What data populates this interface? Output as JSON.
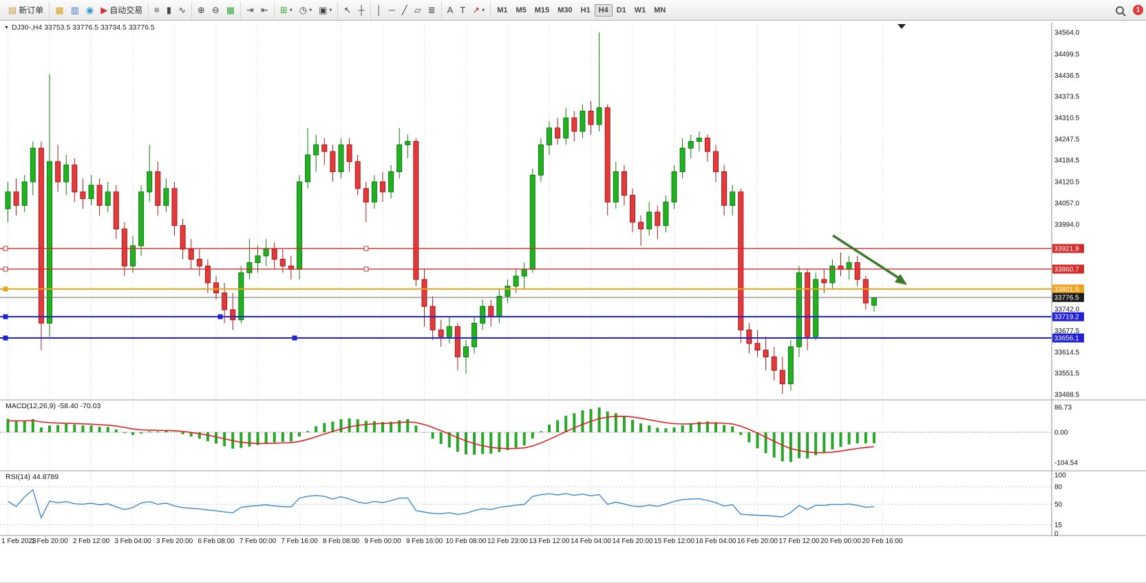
{
  "icons": {
    "chart-menu": {
      "g": "▼",
      "c": "#111"
    },
    "new-order": {
      "g": "▤",
      "c": "#c89b3c"
    },
    "market-watch": {
      "g": "▦",
      "c": "#d4a017"
    },
    "data-window": {
      "g": "▥",
      "c": "#4a77c9"
    },
    "navigator": {
      "g": "◉",
      "c": "#2e9bd6"
    },
    "autotrade": {
      "g": "▶",
      "c": "#cc3333"
    },
    "bars": {
      "g": "≡",
      "c": "#444",
      "rot": 90
    },
    "candles": {
      "g": "▮",
      "c": "#444"
    },
    "line-chart": {
      "g": "∿",
      "c": "#444"
    },
    "zoom-in": {
      "g": "⊕",
      "c": "#444"
    },
    "zoom-out": {
      "g": "⊖",
      "c": "#444"
    },
    "tile-windows": {
      "g": "▦",
      "c": "#3aa83a"
    },
    "auto-scroll": {
      "g": "⇥",
      "c": "#444"
    },
    "chart-shift": {
      "g": "⇤",
      "c": "#444"
    },
    "indicators": {
      "g": "⊞",
      "c": "#3aa83a"
    },
    "periods": {
      "g": "◷",
      "c": "#444"
    },
    "templates": {
      "g": "▣",
      "c": "#444"
    },
    "cursor": {
      "g": "↖",
      "c": "#444"
    },
    "crosshair": {
      "g": "┼",
      "c": "#444"
    },
    "vertical-line": {
      "g": "│",
      "c": "#444"
    },
    "horizontal-line": {
      "g": "─",
      "c": "#444"
    },
    "trendline": {
      "g": "╱",
      "c": "#444"
    },
    "channel": {
      "g": "▱",
      "c": "#444"
    },
    "fibonacci": {
      "g": "≣",
      "c": "#444"
    },
    "text": {
      "g": "A",
      "c": "#444"
    },
    "label": {
      "g": "T",
      "c": "#444"
    },
    "arrows": {
      "g": "↗",
      "c": "#b03030"
    }
  },
  "toolbar": {
    "groups": [
      {
        "items": [
          {
            "name": "new-order-button",
            "icon": "new-order",
            "label": "新订单"
          }
        ]
      },
      {
        "items": [
          {
            "name": "market-watch-button",
            "icon": "market-watch"
          },
          {
            "name": "data-window-button",
            "icon": "data-window"
          },
          {
            "name": "navigator-button",
            "icon": "navigator"
          },
          {
            "name": "autotrade-button",
            "icon": "autotrade",
            "label": "自动交易"
          }
        ]
      },
      {
        "items": [
          {
            "name": "ohlc-bars-button",
            "icon": "bars"
          },
          {
            "name": "candlesticks-button",
            "icon": "candles"
          },
          {
            "name": "line-chart-button",
            "icon": "line-chart"
          }
        ]
      },
      {
        "items": [
          {
            "name": "zoom-in-button",
            "icon": "zoom-in"
          },
          {
            "name": "zoom-out-button",
            "icon": "zoom-out"
          },
          {
            "name": "tile-windows-button",
            "icon": "tile-windows"
          }
        ]
      },
      {
        "items": [
          {
            "name": "auto-scroll-button",
            "icon": "auto-scroll"
          },
          {
            "name": "chart-shift-button",
            "icon": "chart-shift"
          }
        ]
      },
      {
        "items": [
          {
            "name": "indicators-button",
            "icon": "indicators",
            "caret": true
          },
          {
            "name": "periods-button",
            "icon": "periods",
            "caret": true
          },
          {
            "name": "templates-button",
            "icon": "templates",
            "caret": true
          }
        ]
      },
      {
        "items": [
          {
            "name": "cursor-button",
            "icon": "cursor"
          },
          {
            "name": "crosshair-button",
            "icon": "crosshair"
          }
        ]
      },
      {
        "items": [
          {
            "name": "vertical-line-button",
            "icon": "vertical-line"
          },
          {
            "name": "horizontal-line-button",
            "icon": "horizontal-line"
          },
          {
            "name": "trendline-button",
            "icon": "trendline"
          },
          {
            "name": "channel-button",
            "icon": "channel"
          },
          {
            "name": "fibonacci-button",
            "icon": "fibonacci"
          }
        ]
      },
      {
        "items": [
          {
            "name": "text-button",
            "icon": "text"
          },
          {
            "name": "label-button",
            "icon": "label"
          },
          {
            "name": "arrows-button",
            "icon": "arrows",
            "caret": true
          }
        ]
      }
    ],
    "timeframes": {
      "items": [
        "M1",
        "M5",
        "M15",
        "M30",
        "H1",
        "H4",
        "D1",
        "W1",
        "MN"
      ],
      "active": "H4"
    },
    "right": [
      {
        "name": "search-button",
        "icon": "magnifier"
      },
      {
        "name": "notification-badge",
        "label": "1",
        "badge": true
      }
    ]
  },
  "chart": {
    "title": "DJ30-,H4  33753.5 33776.5 33734.5 33776.5",
    "symbol": "DJ30-",
    "period": "H4",
    "ohlc": {
      "open": "33753.5",
      "high": "33776.5",
      "low": "33734.5",
      "close": "33776.5"
    },
    "y_axis_labels": [
      "34564.0",
      "34499.5",
      "34436.5",
      "34373.5",
      "34310.5",
      "34247.5",
      "34184.5",
      "34120.5",
      "34057.0",
      "33994.0",
      "33742.0",
      "33677.5",
      "33614.5",
      "33551.5",
      "33488.5"
    ],
    "x_axis_labels": [
      "1 Feb 2023",
      "1 Feb 20:00",
      "2 Feb 12:00",
      "3 Feb 04:00",
      "3 Feb 20:00",
      "6 Feb 08:00",
      "7 Feb 00:00",
      "7 Feb 16:00",
      "8 Feb 08:00",
      "9 Feb 00:00",
      "9 Feb 16:00",
      "10 Feb 08:00",
      "12 Feb 23:00",
      "13 Feb 12:00",
      "14 Feb 04:00",
      "14 Feb 20:00",
      "15 Feb 12:00",
      "16 Feb 04:00",
      "16 Feb 20:00",
      "17 Feb 12:00",
      "20 Feb 00:00",
      "20 Feb 16:00"
    ],
    "price_lines": [
      {
        "price": 33921.9,
        "label": "33921.9",
        "color": "#d42a2a",
        "width": 1.4,
        "hollow": true,
        "handles": [
          8,
          532
        ]
      },
      {
        "price": 33860.7,
        "label": "33860.7",
        "color": "#d42a2a",
        "width": 1.4,
        "hollow": true,
        "handles": [
          8,
          532
        ]
      },
      {
        "price": 33801.5,
        "label": "33801.5",
        "color": "#efa21a",
        "width": 2,
        "hollow": false,
        "handles": [
          8
        ]
      },
      {
        "price": 33719.2,
        "label": "33719.2",
        "color": "#1f1fd4",
        "width": 2,
        "hollow": false,
        "handles": [
          8,
          320
        ]
      },
      {
        "price": 33656.1,
        "label": "33656.1",
        "color": "#1f1fd4",
        "width": 2,
        "hollow": false,
        "handles": [
          8,
          428
        ]
      }
    ],
    "current_price": {
      "value": "33776.5",
      "price": 33776.5,
      "badge_color": "#1a1a1a"
    },
    "candles": [
      [
        34040,
        34120,
        34000,
        34090
      ],
      [
        34090,
        34130,
        34020,
        34050
      ],
      [
        34050,
        34140,
        34030,
        34120
      ],
      [
        34120,
        34240,
        34080,
        34220
      ],
      [
        34220,
        34240,
        33620,
        33700
      ],
      [
        33700,
        34440,
        33660,
        34180
      ],
      [
        34180,
        34230,
        34090,
        34120
      ],
      [
        34120,
        34200,
        34080,
        34170
      ],
      [
        34170,
        34190,
        34060,
        34090
      ],
      [
        34090,
        34130,
        34040,
        34070
      ],
      [
        34070,
        34140,
        34050,
        34110
      ],
      [
        34110,
        34130,
        34020,
        34050
      ],
      [
        34050,
        34120,
        34030,
        34090
      ],
      [
        34090,
        34110,
        33950,
        33980
      ],
      [
        33980,
        34000,
        33840,
        33870
      ],
      [
        33870,
        33960,
        33850,
        33930
      ],
      [
        33930,
        34110,
        33900,
        34090
      ],
      [
        34090,
        34230,
        34060,
        34150
      ],
      [
        34150,
        34180,
        34020,
        34050
      ],
      [
        34050,
        34130,
        34030,
        34100
      ],
      [
        34100,
        34120,
        33960,
        33990
      ],
      [
        33990,
        34010,
        33890,
        33920
      ],
      [
        33920,
        33950,
        33860,
        33890
      ],
      [
        33890,
        33920,
        33840,
        33870
      ],
      [
        33870,
        33890,
        33790,
        33820
      ],
      [
        33820,
        33840,
        33770,
        33790
      ],
      [
        33790,
        33820,
        33700,
        33740
      ],
      [
        33740,
        33790,
        33680,
        33710
      ],
      [
        33710,
        33870,
        33700,
        33850
      ],
      [
        33850,
        33950,
        33830,
        33880
      ],
      [
        33880,
        33930,
        33850,
        33900
      ],
      [
        33900,
        33950,
        33870,
        33920
      ],
      [
        33920,
        33940,
        33860,
        33890
      ],
      [
        33890,
        33920,
        33850,
        33870
      ],
      [
        33870,
        33900,
        33830,
        33860
      ],
      [
        33860,
        34140,
        33830,
        34120
      ],
      [
        34120,
        34280,
        34100,
        34200
      ],
      [
        34200,
        34260,
        34150,
        34230
      ],
      [
        34230,
        34250,
        34170,
        34210
      ],
      [
        34210,
        34230,
        34120,
        34150
      ],
      [
        34150,
        34250,
        34130,
        34230
      ],
      [
        34230,
        34250,
        34150,
        34180
      ],
      [
        34180,
        34200,
        34080,
        34100
      ],
      [
        34100,
        34120,
        34000,
        34060
      ],
      [
        34060,
        34140,
        34040,
        34120
      ],
      [
        34120,
        34150,
        34060,
        34090
      ],
      [
        34090,
        34170,
        34070,
        34150
      ],
      [
        34150,
        34280,
        34130,
        34230
      ],
      [
        34230,
        34260,
        34190,
        34240
      ],
      [
        34240,
        34250,
        33810,
        33830
      ],
      [
        33830,
        33860,
        33690,
        33750
      ],
      [
        33750,
        33780,
        33650,
        33680
      ],
      [
        33680,
        33710,
        33630,
        33660
      ],
      [
        33660,
        33720,
        33640,
        33690
      ],
      [
        33690,
        33700,
        33560,
        33600
      ],
      [
        33600,
        33650,
        33550,
        33630
      ],
      [
        33630,
        33720,
        33610,
        33700
      ],
      [
        33700,
        33770,
        33680,
        33750
      ],
      [
        33750,
        33770,
        33690,
        33720
      ],
      [
        33720,
        33800,
        33700,
        33780
      ],
      [
        33780,
        33830,
        33760,
        33810
      ],
      [
        33810,
        33860,
        33790,
        33840
      ],
      [
        33840,
        33880,
        33800,
        33860
      ],
      [
        33860,
        34160,
        33850,
        34140
      ],
      [
        34140,
        34250,
        34120,
        34230
      ],
      [
        34230,
        34300,
        34200,
        34280
      ],
      [
        34280,
        34310,
        34230,
        34250
      ],
      [
        34250,
        34340,
        34230,
        34310
      ],
      [
        34310,
        34330,
        34240,
        34270
      ],
      [
        34270,
        34350,
        34250,
        34330
      ],
      [
        34330,
        34360,
        34260,
        34290
      ],
      [
        34290,
        34564,
        34270,
        34340
      ],
      [
        34340,
        34350,
        34020,
        34060
      ],
      [
        34060,
        34180,
        34040,
        34150
      ],
      [
        34150,
        34170,
        34050,
        34080
      ],
      [
        34080,
        34100,
        33970,
        34000
      ],
      [
        34000,
        34020,
        33930,
        33980
      ],
      [
        33980,
        34060,
        33960,
        34030
      ],
      [
        34030,
        34050,
        33950,
        33990
      ],
      [
        33990,
        34080,
        33970,
        34060
      ],
      [
        34060,
        34170,
        34040,
        34150
      ],
      [
        34150,
        34250,
        34130,
        34220
      ],
      [
        34220,
        34260,
        34190,
        34240
      ],
      [
        34240,
        34270,
        34210,
        34250
      ],
      [
        34250,
        34260,
        34180,
        34210
      ],
      [
        34210,
        34230,
        34120,
        34150
      ],
      [
        34150,
        34170,
        34020,
        34050
      ],
      [
        34050,
        34110,
        34020,
        34090
      ],
      [
        34090,
        34100,
        33640,
        33680
      ],
      [
        33680,
        33700,
        33610,
        33640
      ],
      [
        33640,
        33680,
        33600,
        33620
      ],
      [
        33620,
        33660,
        33560,
        33600
      ],
      [
        33600,
        33630,
        33530,
        33560
      ],
      [
        33560,
        33600,
        33490,
        33520
      ],
      [
        33520,
        33650,
        33500,
        33630
      ],
      [
        33630,
        33870,
        33600,
        33850
      ],
      [
        33850,
        33860,
        33620,
        33660
      ],
      [
        33660,
        33850,
        33650,
        33830
      ],
      [
        33830,
        33860,
        33790,
        33820
      ],
      [
        33820,
        33890,
        33800,
        33870
      ],
      [
        33870,
        33910,
        33840,
        33860
      ],
      [
        33860,
        33900,
        33830,
        33880
      ],
      [
        33880,
        33900,
        33810,
        33830
      ],
      [
        33830,
        33840,
        33740,
        33760
      ],
      [
        33753.5,
        33776.5,
        33734.5,
        33776.5
      ]
    ],
    "arrow": {
      "color": "#3a7a2a"
    }
  },
  "macd": {
    "label": "MACD(12,26,9)  -58.40 -70.03",
    "params": [
      12,
      26,
      9
    ],
    "values": [
      "-58.40",
      "-70.03"
    ],
    "axis_labels": [
      "86.73",
      "0.00",
      "-104.54"
    ]
  },
  "rsi": {
    "label": "RSI(14) 44.8789",
    "value": "44.8789",
    "axis_labels": [
      "100",
      "80",
      "50",
      "15",
      "0"
    ],
    "levels": [
      80,
      50,
      15
    ]
  },
  "colors": {
    "up": "#21b121",
    "up_border": "#0c7a0c",
    "down": "#e33b3b",
    "down_border": "#a81414",
    "grid": "#dcdcdc",
    "separator": "#9a9a9a",
    "macd_hist": "#25a825",
    "macd_signal": "#e02020",
    "rsi_line": "#3f87cf"
  }
}
